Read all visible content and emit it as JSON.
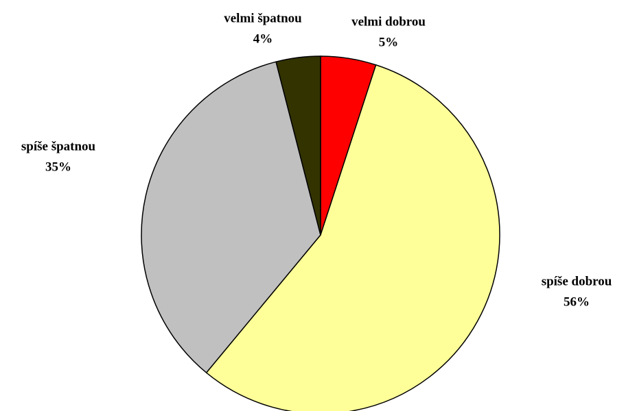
{
  "chart_data": {
    "type": "pie",
    "categories": [
      "velmi dobrou",
      "spíše dobrou",
      "spíše špatnou",
      "velmi špatnou"
    ],
    "values": [
      5,
      56,
      35,
      4
    ],
    "value_labels": [
      "5%",
      "56%",
      "35%",
      "4%"
    ],
    "colors": [
      "#ff0000",
      "#ffff99",
      "#c0c0c0",
      "#333300"
    ]
  }
}
